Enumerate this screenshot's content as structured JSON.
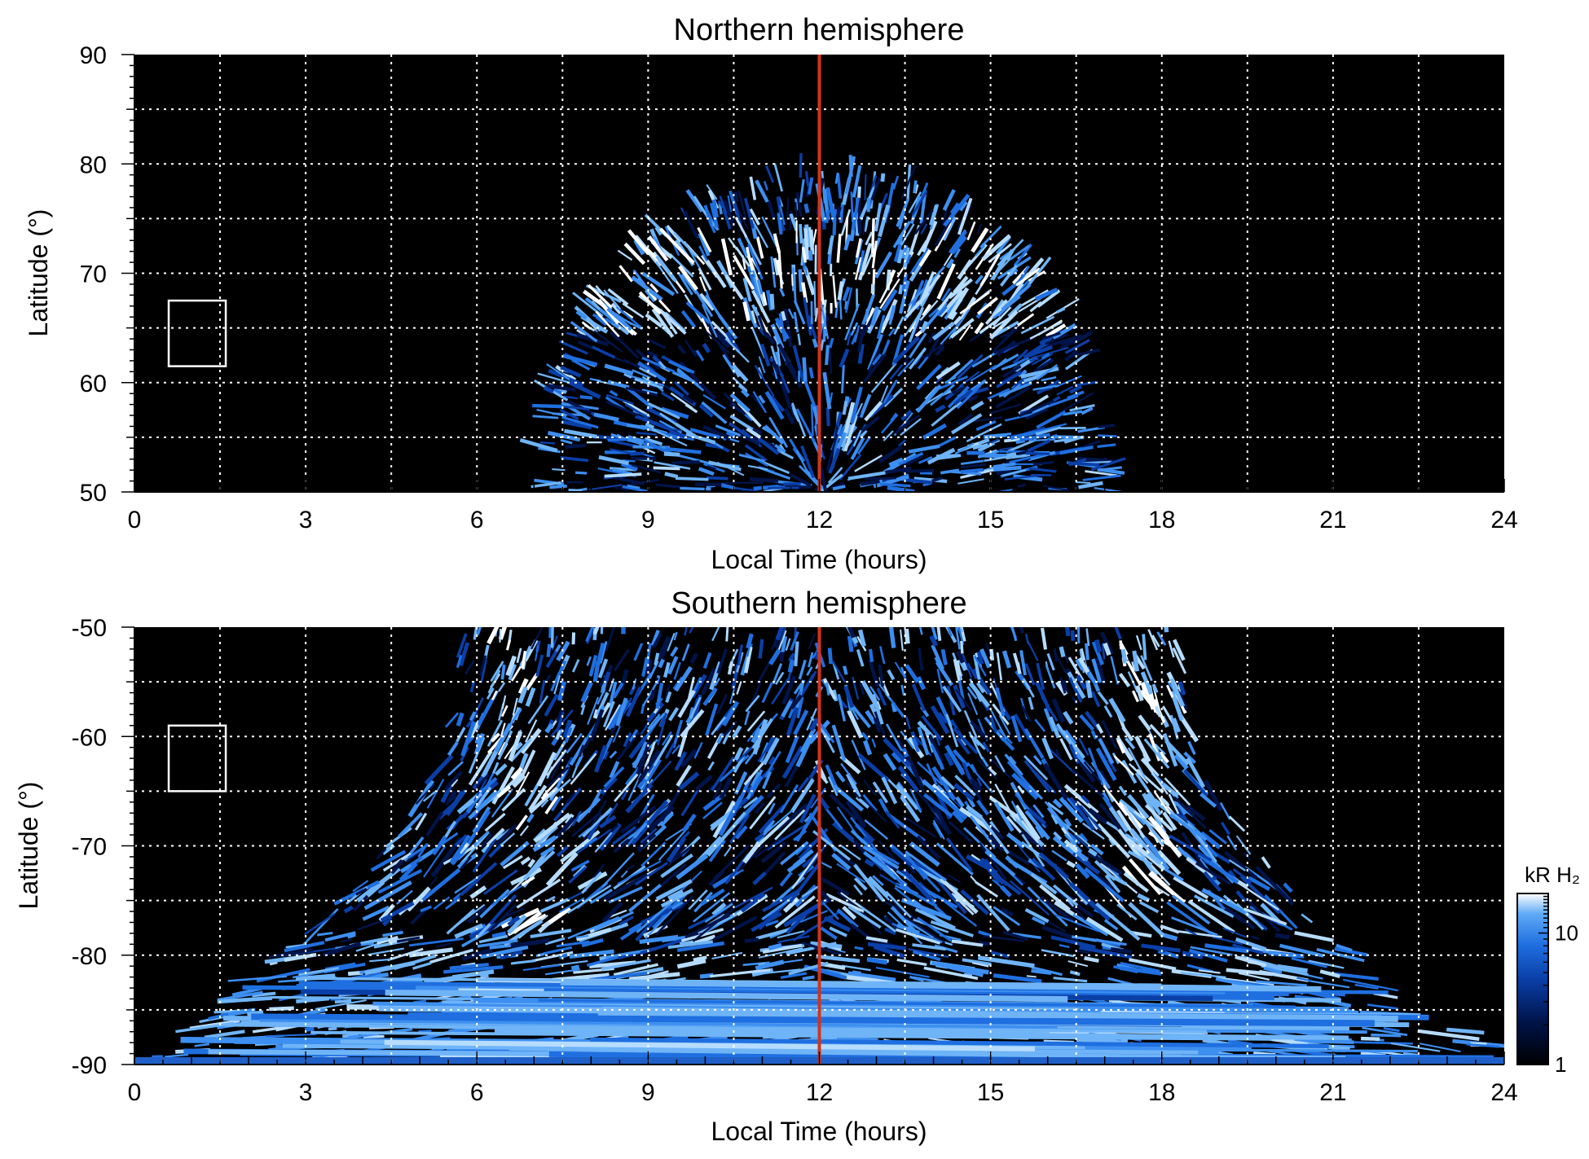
{
  "figure": {
    "colorbar_label": "kR H₂"
  },
  "chart_data": [
    {
      "type": "heatmap",
      "title": "Northern hemisphere",
      "xlabel": "Local Time (hours)",
      "ylabel": "Latitude (°)",
      "xlim": [
        0,
        24
      ],
      "ylim": [
        50,
        90
      ],
      "xticks": [
        0,
        3,
        6,
        9,
        12,
        15,
        18,
        21,
        24
      ],
      "yticks": [
        50,
        60,
        70,
        80,
        90
      ],
      "grid": true,
      "noon_line": {
        "x": 12,
        "color": "#d2341c"
      },
      "marker_box": {
        "x": [
          0.6,
          1.6
        ],
        "y": [
          61.5,
          67.5
        ]
      },
      "emission_region": {
        "shape": "dome",
        "lt_range": [
          7.0,
          17.2
        ],
        "outer_boundary_lat_max": 80,
        "bright_arc_lat": [
          65,
          73
        ]
      }
    },
    {
      "type": "heatmap",
      "title": "Southern hemisphere",
      "xlabel": "Local Time (hours)",
      "ylabel": "Latitude (°)",
      "xlim": [
        0,
        24
      ],
      "ylim": [
        -90,
        -50
      ],
      "xticks": [
        0,
        3,
        6,
        9,
        12,
        15,
        18,
        21,
        24
      ],
      "yticks": [
        -90,
        -80,
        -70,
        -60,
        -50
      ],
      "grid": true,
      "noon_line": {
        "x": 12,
        "color": "#d2341c"
      },
      "marker_box": {
        "x": [
          0.6,
          1.6
        ],
        "y": [
          -65,
          -59
        ]
      },
      "emission_region": {
        "shape": "inverted-dome",
        "lt_range": [
          0,
          24
        ],
        "bright_features": [
          "dawn arc near 6.5 h",
          "dusk arc near 17.8 h",
          "polar bands below -80"
        ]
      }
    }
  ],
  "colorbar": {
    "label": "kR H₂",
    "scale": "log",
    "range": [
      1,
      20
    ],
    "ticks": [
      1,
      10
    ],
    "colors": [
      "#000000",
      "#00144a",
      "#0a3fa8",
      "#1f6fe0",
      "#5ea9f5",
      "#ffffff"
    ]
  }
}
